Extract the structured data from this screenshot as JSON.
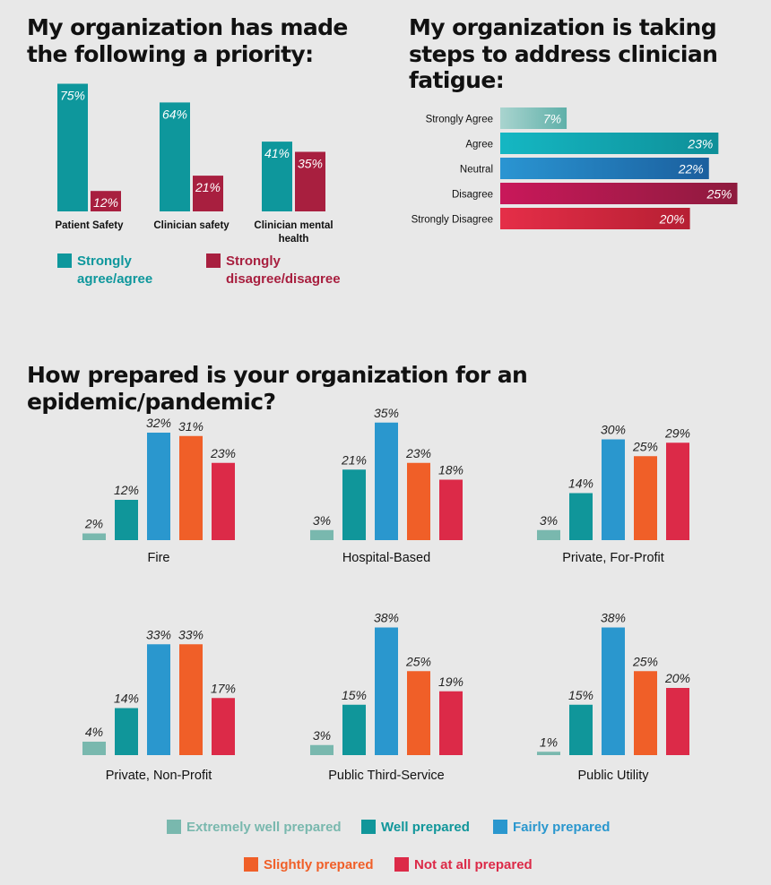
{
  "colors": {
    "teal": "#0e979c",
    "crimson": "#a81f3f",
    "extremely": "#79b8ae",
    "well": "#10969a",
    "fairly": "#2a97ce",
    "slightly": "#f05f28",
    "not": "#dc2a48"
  },
  "titles": {
    "priority": "My organization has made the following a priority:",
    "fatigue": "My organization is taking steps to address clinician fatigue:",
    "prepared": "How prepared is your organization for an epidemic/pandemic?"
  },
  "legend_priority": [
    {
      "label": "Strongly agree/agree",
      "color": "#0e979c"
    },
    {
      "label": "Strongly disagree/disagree",
      "color": "#a81f3f"
    }
  ],
  "legend_prepared": [
    {
      "label": "Extremely well prepared",
      "color": "#79b8ae"
    },
    {
      "label": "Well prepared",
      "color": "#10969a"
    },
    {
      "label": "Fairly prepared",
      "color": "#2a97ce"
    },
    {
      "label": "Slightly prepared",
      "color": "#f05f28"
    },
    {
      "label": "Not at all prepared",
      "color": "#dc2a48"
    }
  ],
  "chart_data": [
    {
      "type": "bar",
      "title": "My organization has made the following a priority:",
      "categories": [
        "Patient Safety",
        "Clinician safety",
        "Clinician mental health"
      ],
      "series": [
        {
          "name": "Strongly agree/agree",
          "values": [
            75,
            64,
            41
          ]
        },
        {
          "name": "Strongly disagree/disagree",
          "values": [
            12,
            21,
            35
          ]
        }
      ],
      "unit": "%"
    },
    {
      "type": "bar",
      "orientation": "horizontal",
      "title": "My organization is taking steps to address clinician fatigue:",
      "categories": [
        "Strongly Agree",
        "Agree",
        "Neutral",
        "Disagree",
        "Strongly Disagree"
      ],
      "values": [
        7,
        23,
        22,
        25,
        20
      ],
      "unit": "%"
    },
    {
      "type": "bar",
      "title": "How prepared is your organization for an epidemic/pandemic?",
      "series_names": [
        "Extremely well prepared",
        "Well prepared",
        "Fairly prepared",
        "Slightly prepared",
        "Not at all prepared"
      ],
      "panels": [
        {
          "label": "Fire",
          "values": [
            2,
            12,
            32,
            31,
            23
          ]
        },
        {
          "label": "Hospital-Based",
          "values": [
            3,
            21,
            35,
            23,
            18
          ]
        },
        {
          "label": "Private, For-Profit",
          "values": [
            3,
            14,
            30,
            25,
            29
          ]
        },
        {
          "label": "Private, Non-Profit",
          "values": [
            4,
            14,
            33,
            33,
            17
          ]
        },
        {
          "label": "Public Third-Service",
          "values": [
            3,
            15,
            38,
            25,
            19
          ]
        },
        {
          "label": "Public Utility",
          "values": [
            1,
            15,
            38,
            25,
            20
          ]
        }
      ],
      "unit": "%"
    }
  ]
}
